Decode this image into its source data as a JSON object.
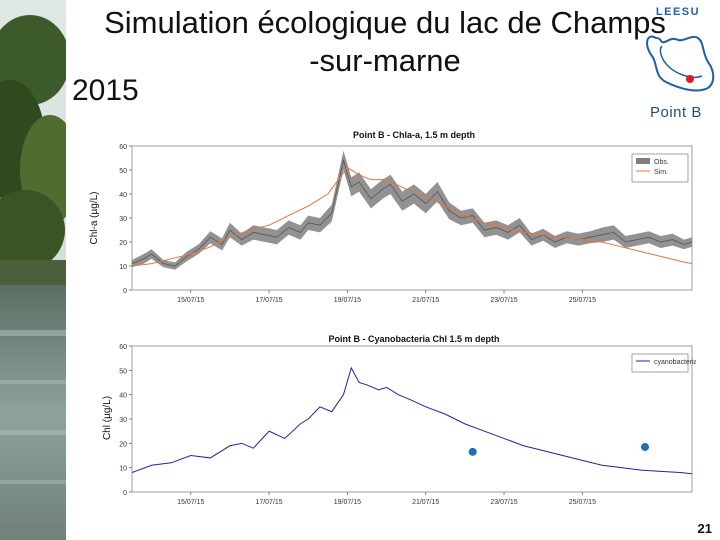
{
  "slide": {
    "title_line1": "Simulation écologique du lac de Champs",
    "title_line2": "-sur-marne",
    "year": "2015",
    "point_label": "Point B",
    "page_number": "21",
    "logo_text": "LEESU"
  },
  "chart_data": [
    {
      "type": "line",
      "title": "Point B - Chla-a, 1.5 m depth",
      "xlabel": "",
      "ylabel": "Chl-a (µg/L)",
      "ylim": [
        0,
        60
      ],
      "yticks": [
        0,
        10,
        20,
        30,
        40,
        50,
        60
      ],
      "xlim": [
        13.5,
        27.8
      ],
      "xtick_values": [
        15,
        17,
        19,
        21,
        23,
        25
      ],
      "xtick_labels": [
        "15/07/15",
        "17/07/15",
        "19/07/15",
        "21/07/15",
        "23/07/15",
        "25/07/15"
      ],
      "legend_position": "top-right",
      "series": [
        {
          "name": "Obs.",
          "style": "band",
          "color": "#7f7f7f",
          "x": [
            13.5,
            13.8,
            14.0,
            14.3,
            14.6,
            14.9,
            15.2,
            15.5,
            15.8,
            16.0,
            16.3,
            16.6,
            16.9,
            17.2,
            17.5,
            17.8,
            18.0,
            18.3,
            18.6,
            18.9,
            19.1,
            19.3,
            19.6,
            19.9,
            20.1,
            20.4,
            20.7,
            21.0,
            21.3,
            21.6,
            21.9,
            22.2,
            22.5,
            22.8,
            23.1,
            23.4,
            23.7,
            24.0,
            24.3,
            24.6,
            24.9,
            25.2,
            25.5,
            25.8,
            26.1,
            26.4,
            26.7,
            27.0,
            27.3,
            27.6,
            27.8
          ],
          "y": [
            11,
            13,
            15,
            11,
            10,
            14,
            17,
            22,
            19,
            25,
            21,
            24,
            23,
            22,
            26,
            24,
            28,
            27,
            32,
            54,
            43,
            45,
            38,
            42,
            44,
            37,
            40,
            36,
            41,
            33,
            30,
            31,
            25,
            26,
            24,
            27,
            21,
            23,
            20,
            22,
            21,
            22,
            23,
            24,
            20,
            21,
            22,
            20,
            21,
            19,
            20
          ],
          "band_halfwidth": [
            1.5,
            2,
            2,
            1.5,
            1.5,
            2,
            2,
            2.5,
            2.5,
            3,
            2.5,
            3,
            3,
            3,
            3,
            3,
            3,
            3,
            3.5,
            4,
            4,
            4,
            4,
            4,
            4,
            4,
            4,
            4,
            4,
            3.5,
            3,
            3,
            3,
            3,
            3,
            3,
            2.5,
            2.5,
            2.5,
            2.5,
            2.5,
            2.5,
            3,
            3,
            2.5,
            2.5,
            2.5,
            2.5,
            2.5,
            2,
            2
          ]
        },
        {
          "name": "Sim.",
          "style": "line",
          "color": "#e8743b",
          "x": [
            13.5,
            14.0,
            14.5,
            15.0,
            15.5,
            16.0,
            16.5,
            17.0,
            17.5,
            18.0,
            18.5,
            19.0,
            19.3,
            19.6,
            20.0,
            20.5,
            21.0,
            21.5,
            22.0,
            22.5,
            23.0,
            23.5,
            24.0,
            24.5,
            25.0,
            25.5,
            26.0,
            26.5,
            27.0,
            27.5,
            27.8
          ],
          "y": [
            10,
            11,
            13,
            15,
            18,
            22,
            25,
            27,
            31,
            35,
            40,
            51,
            48,
            46,
            46,
            42,
            39,
            35,
            31,
            28,
            26,
            24,
            23,
            22,
            21,
            20,
            18,
            16,
            14,
            12,
            11
          ]
        }
      ]
    },
    {
      "type": "line",
      "title": "Point B - Cyanobacteria Chl 1.5 m depth",
      "xlabel": "",
      "ylabel": "Chl (µg/L)",
      "ylim": [
        0,
        60
      ],
      "yticks": [
        0,
        10,
        20,
        30,
        40,
        50,
        60
      ],
      "xlim": [
        13.5,
        27.8
      ],
      "xtick_values": [
        15,
        17,
        19,
        21,
        23,
        25
      ],
      "xtick_labels": [
        "15/07/15",
        "17/07/15",
        "19/07/15",
        "21/07/15",
        "23/07/15",
        "25/07/15"
      ],
      "legend_position": "top-right",
      "series": [
        {
          "name": "cyanobacteria",
          "style": "line",
          "color": "#2222aa",
          "x": [
            13.5,
            14.0,
            14.5,
            15.0,
            15.5,
            16.0,
            16.3,
            16.6,
            17.0,
            17.4,
            17.8,
            18.0,
            18.3,
            18.6,
            18.9,
            19.1,
            19.3,
            19.5,
            19.8,
            20.0,
            20.3,
            20.6,
            21.0,
            21.5,
            22.0,
            22.5,
            23.0,
            23.5,
            24.0,
            24.5,
            25.0,
            25.5,
            26.0,
            26.5,
            27.0,
            27.5,
            27.8
          ],
          "y": [
            8,
            11,
            12,
            15,
            14,
            19,
            20,
            18,
            25,
            22,
            28,
            30,
            35,
            33,
            40,
            51,
            45,
            44,
            42,
            43,
            40,
            38,
            35,
            32,
            28,
            25,
            22,
            19,
            17,
            15,
            13,
            11,
            10,
            9,
            8.5,
            8,
            7.5
          ]
        },
        {
          "name": "",
          "style": "points",
          "color": "#1f6fb4",
          "x": [
            22.2,
            26.6
          ],
          "y": [
            16.5,
            18.5
          ]
        }
      ]
    }
  ]
}
